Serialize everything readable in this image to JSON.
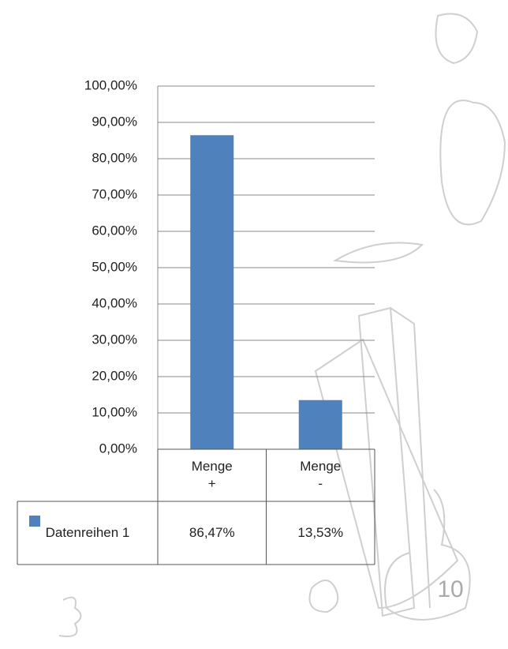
{
  "chart_data": {
    "type": "bar",
    "categories": [
      "Menge +",
      "Menge -"
    ],
    "series": [
      {
        "name": "Datenreihen 1",
        "color": "#4f81bd",
        "values": [
          86.47,
          13.53
        ],
        "value_labels": [
          "86,47%",
          "13,53%"
        ]
      }
    ],
    "ylim": [
      0,
      100
    ],
    "yticks": [
      {
        "value": 0,
        "label": "0,00%"
      },
      {
        "value": 10,
        "label": "10,00%"
      },
      {
        "value": 20,
        "label": "20,00%"
      },
      {
        "value": 30,
        "label": "30,00%"
      },
      {
        "value": 40,
        "label": "40,00%"
      },
      {
        "value": 50,
        "label": "50,00%"
      },
      {
        "value": 60,
        "label": "60,00%"
      },
      {
        "value": 70,
        "label": "70,00%"
      },
      {
        "value": 80,
        "label": "80,00%"
      },
      {
        "value": 90,
        "label": "90,00%"
      },
      {
        "value": 100,
        "label": "100,00%"
      }
    ],
    "grid": true,
    "data_table": true
  },
  "page": {
    "number": "10"
  }
}
